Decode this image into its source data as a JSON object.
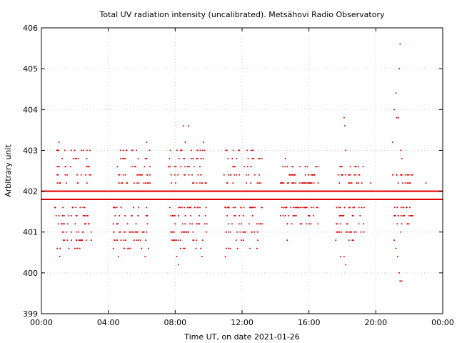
{
  "chart_data": {
    "type": "scatter",
    "title": "Total UV radiation intensity (uncalibrated). Metsähovi Radio Observatory",
    "xlabel": "Time UT, on date 2021-01-26",
    "ylabel": "Arbitrary unit",
    "xlim": [
      0,
      24
    ],
    "ylim": [
      399,
      406
    ],
    "xticks": [
      {
        "value": 0,
        "label": "00:00"
      },
      {
        "value": 4,
        "label": "04:00"
      },
      {
        "value": 8,
        "label": "08:00"
      },
      {
        "value": 12,
        "label": "12:00"
      },
      {
        "value": 16,
        "label": "16:00"
      },
      {
        "value": 20,
        "label": "20:00"
      },
      {
        "value": 24,
        "label": "00:00"
      }
    ],
    "yticks": [
      399,
      400,
      401,
      402,
      403,
      404,
      405,
      406
    ],
    "grid": true,
    "marker_color": "#e00000",
    "baseline_levels": [
      401.8,
      402.0
    ],
    "outliers": [
      {
        "x": 1.05,
        "y": 403.2
      },
      {
        "x": 1.1,
        "y": 400.4
      },
      {
        "x": 1.4,
        "y": 403.0
      },
      {
        "x": 2.9,
        "y": 403.0
      },
      {
        "x": 4.6,
        "y": 400.4
      },
      {
        "x": 6.3,
        "y": 403.2
      },
      {
        "x": 6.2,
        "y": 400.4
      },
      {
        "x": 8.1,
        "y": 400.4
      },
      {
        "x": 8.2,
        "y": 400.2
      },
      {
        "x": 8.5,
        "y": 403.6
      },
      {
        "x": 8.8,
        "y": 403.6
      },
      {
        "x": 8.6,
        "y": 403.2
      },
      {
        "x": 9.7,
        "y": 403.2
      },
      {
        "x": 9.6,
        "y": 400.4
      },
      {
        "x": 11.0,
        "y": 400.4
      },
      {
        "x": 11.3,
        "y": 400.6
      },
      {
        "x": 11.8,
        "y": 403.0
      },
      {
        "x": 13.0,
        "y": 402.8
      },
      {
        "x": 14.7,
        "y": 400.8
      },
      {
        "x": 14.6,
        "y": 402.8
      },
      {
        "x": 16.3,
        "y": 402.4
      },
      {
        "x": 17.9,
        "y": 400.4
      },
      {
        "x": 18.1,
        "y": 400.4
      },
      {
        "x": 18.2,
        "y": 400.2
      },
      {
        "x": 18.1,
        "y": 403.8
      },
      {
        "x": 18.15,
        "y": 403.6
      },
      {
        "x": 18.2,
        "y": 403.0
      },
      {
        "x": 19.7,
        "y": 402.2
      },
      {
        "x": 21.0,
        "y": 403.2
      },
      {
        "x": 21.1,
        "y": 404.0
      },
      {
        "x": 21.2,
        "y": 404.4
      },
      {
        "x": 21.25,
        "y": 403.8
      },
      {
        "x": 21.35,
        "y": 403.8
      },
      {
        "x": 21.4,
        "y": 405.0
      },
      {
        "x": 21.45,
        "y": 405.6
      },
      {
        "x": 21.5,
        "y": 403.0
      },
      {
        "x": 21.55,
        "y": 402.8
      },
      {
        "x": 21.2,
        "y": 400.6
      },
      {
        "x": 21.3,
        "y": 400.4
      },
      {
        "x": 21.4,
        "y": 400.0
      },
      {
        "x": 21.45,
        "y": 399.8
      },
      {
        "x": 21.55,
        "y": 399.8
      },
      {
        "x": 21.5,
        "y": 401.0
      },
      {
        "x": 21.1,
        "y": 400.8
      },
      {
        "x": 23.0,
        "y": 402.2
      }
    ],
    "active_periods": [
      {
        "start": 0.8,
        "end": 3.0,
        "low": 400.6,
        "high": 403.0
      },
      {
        "start": 4.3,
        "end": 6.5,
        "low": 400.6,
        "high": 403.0
      },
      {
        "start": 7.6,
        "end": 10.0,
        "low": 400.6,
        "high": 403.2
      },
      {
        "start": 10.9,
        "end": 13.2,
        "low": 400.6,
        "high": 403.0
      },
      {
        "start": 14.3,
        "end": 16.6,
        "low": 401.2,
        "high": 402.6
      },
      {
        "start": 17.6,
        "end": 19.3,
        "low": 400.8,
        "high": 402.6
      },
      {
        "start": 21.0,
        "end": 22.2,
        "low": 401.2,
        "high": 402.6
      }
    ]
  }
}
